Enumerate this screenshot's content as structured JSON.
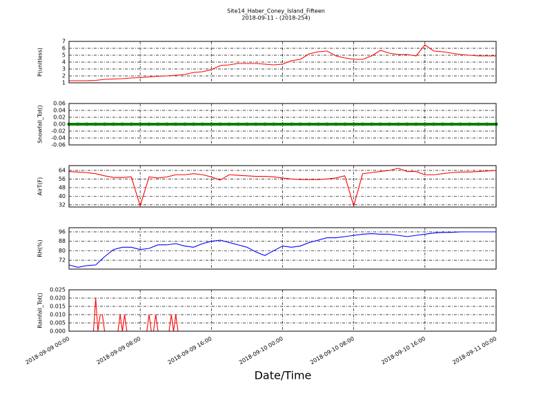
{
  "chart_data": [
    {
      "type": "line",
      "title": "Site14_Haber_Coney_Island_Fifteen",
      "subtitle": "2018-09-11 - (2018-254)",
      "ylabel": "P(unitless)",
      "color": "#ff0000",
      "grid": true,
      "x": [
        "2018-09-09 00:00",
        "2018-09-09 01:00",
        "2018-09-09 02:00",
        "2018-09-09 03:00",
        "2018-09-09 04:00",
        "2018-09-09 05:00",
        "2018-09-09 06:00",
        "2018-09-09 07:00",
        "2018-09-09 08:00",
        "2018-09-09 09:00",
        "2018-09-09 10:00",
        "2018-09-09 11:00",
        "2018-09-09 12:00",
        "2018-09-09 13:00",
        "2018-09-09 14:00",
        "2018-09-09 15:00",
        "2018-09-09 16:00",
        "2018-09-09 17:00",
        "2018-09-09 18:00",
        "2018-09-09 19:00",
        "2018-09-09 20:00",
        "2018-09-09 21:00",
        "2018-09-09 22:00",
        "2018-09-09 23:00",
        "2018-09-10 00:00",
        "2018-09-10 01:00",
        "2018-09-10 02:00",
        "2018-09-10 03:00",
        "2018-09-10 04:00",
        "2018-09-10 05:00",
        "2018-09-10 06:00",
        "2018-09-10 07:00",
        "2018-09-10 08:00",
        "2018-09-10 09:00",
        "2018-09-10 10:00",
        "2018-09-10 11:00",
        "2018-09-10 12:00",
        "2018-09-10 13:00",
        "2018-09-10 14:00",
        "2018-09-10 15:00",
        "2018-09-10 16:00",
        "2018-09-10 17:00",
        "2018-09-10 18:00",
        "2018-09-10 19:00",
        "2018-09-10 20:00",
        "2018-09-10 21:00",
        "2018-09-10 22:00",
        "2018-09-10 23:00",
        "2018-09-11 00:00"
      ],
      "values": [
        1.3,
        1.3,
        1.3,
        1.35,
        1.5,
        1.55,
        1.6,
        1.7,
        1.75,
        1.85,
        1.95,
        2.0,
        2.1,
        2.2,
        2.5,
        2.6,
        2.9,
        3.5,
        3.6,
        3.8,
        3.8,
        3.8,
        3.7,
        3.6,
        3.7,
        4.2,
        4.4,
        5.2,
        5.5,
        5.6,
        4.9,
        4.6,
        4.4,
        4.4,
        4.9,
        5.7,
        5.3,
        5.1,
        5.1,
        4.9,
        6.5,
        5.6,
        5.5,
        5.3,
        5.1,
        5.0,
        4.9,
        4.9,
        4.9
      ],
      "xlim": [
        "2018-09-09 00:00",
        "2018-09-11 00:00"
      ],
      "xticks": [
        "2018-09-09 00:00",
        "2018-09-09 08:00",
        "2018-09-09 16:00",
        "2018-09-10 00:00",
        "2018-09-10 08:00",
        "2018-09-10 16:00",
        "2018-09-11 00:00"
      ],
      "ylim": [
        1,
        7
      ],
      "yticks": [
        1,
        2,
        3,
        4,
        5,
        6,
        7
      ]
    },
    {
      "type": "line",
      "ylabel": "Snowfall_Tot()",
      "color": "#008000",
      "markers": true,
      "grid": true,
      "x": [
        "2018-09-09 00:00",
        "2018-09-09 01:00",
        "2018-09-09 02:00",
        "2018-09-09 03:00",
        "2018-09-09 04:00",
        "2018-09-09 05:00",
        "2018-09-09 06:00",
        "2018-09-09 07:00",
        "2018-09-09 08:00",
        "2018-09-09 09:00",
        "2018-09-09 10:00",
        "2018-09-09 11:00",
        "2018-09-09 12:00",
        "2018-09-09 13:00",
        "2018-09-09 14:00",
        "2018-09-09 15:00",
        "2018-09-09 16:00",
        "2018-09-09 17:00",
        "2018-09-09 18:00",
        "2018-09-09 19:00",
        "2018-09-09 20:00",
        "2018-09-09 21:00",
        "2018-09-09 22:00",
        "2018-09-09 23:00",
        "2018-09-10 00:00",
        "2018-09-10 01:00",
        "2018-09-10 02:00",
        "2018-09-10 03:00",
        "2018-09-10 04:00",
        "2018-09-10 05:00",
        "2018-09-10 06:00",
        "2018-09-10 07:00",
        "2018-09-10 08:00",
        "2018-09-10 09:00",
        "2018-09-10 10:00",
        "2018-09-10 11:00",
        "2018-09-10 12:00",
        "2018-09-10 13:00",
        "2018-09-10 14:00",
        "2018-09-10 15:00",
        "2018-09-10 16:00",
        "2018-09-10 17:00",
        "2018-09-10 18:00",
        "2018-09-10 19:00",
        "2018-09-10 20:00",
        "2018-09-10 21:00",
        "2018-09-10 22:00",
        "2018-09-10 23:00",
        "2018-09-11 00:00"
      ],
      "values": [
        0,
        0,
        0,
        0,
        0,
        0,
        0,
        0,
        0,
        0,
        0,
        0,
        0,
        0,
        0,
        0,
        0,
        0,
        0,
        0,
        0,
        0,
        0,
        0,
        0,
        0,
        0,
        0,
        0,
        0,
        0,
        0,
        0,
        0,
        0,
        0,
        0,
        0,
        0,
        0,
        0,
        0,
        0,
        0,
        0,
        0,
        0,
        0,
        0
      ],
      "xlim": [
        "2018-09-09 00:00",
        "2018-09-11 00:00"
      ],
      "xticks": [
        "2018-09-09 00:00",
        "2018-09-09 08:00",
        "2018-09-09 16:00",
        "2018-09-10 00:00",
        "2018-09-10 08:00",
        "2018-09-10 16:00",
        "2018-09-11 00:00"
      ],
      "ylim": [
        -0.06,
        0.06
      ],
      "yticks": [
        {
          "value": -0.06,
          "label": "-0.06"
        },
        {
          "value": -0.04,
          "label": "-0.04"
        },
        {
          "value": -0.02,
          "label": "-0.02"
        },
        {
          "value": 0,
          "label": "0.00"
        },
        {
          "value": 0.02,
          "label": "0.02"
        },
        {
          "value": 0.04,
          "label": "0.04"
        },
        {
          "value": 0.06,
          "label": "0.06"
        }
      ]
    },
    {
      "type": "line",
      "ylabel": "AirT(F)",
      "color": "#ff0000",
      "grid": true,
      "x": [
        "2018-09-09 00:00",
        "2018-09-09 01:00",
        "2018-09-09 02:00",
        "2018-09-09 03:00",
        "2018-09-09 04:00",
        "2018-09-09 05:00",
        "2018-09-09 06:00",
        "2018-09-09 07:00",
        "2018-09-09 08:00",
        "2018-09-09 09:00",
        "2018-09-09 10:00",
        "2018-09-09 11:00",
        "2018-09-09 12:00",
        "2018-09-09 13:00",
        "2018-09-09 14:00",
        "2018-09-09 15:00",
        "2018-09-09 16:00",
        "2018-09-09 17:00",
        "2018-09-09 18:00",
        "2018-09-09 19:00",
        "2018-09-09 20:00",
        "2018-09-09 21:00",
        "2018-09-09 22:00",
        "2018-09-09 23:00",
        "2018-09-10 00:00",
        "2018-09-10 01:00",
        "2018-09-10 02:00",
        "2018-09-10 03:00",
        "2018-09-10 04:00",
        "2018-09-10 05:00",
        "2018-09-10 06:00",
        "2018-09-10 07:00",
        "2018-09-10 08:00",
        "2018-09-10 09:00",
        "2018-09-10 10:00",
        "2018-09-10 11:00",
        "2018-09-10 12:00",
        "2018-09-10 13:00",
        "2018-09-10 14:00",
        "2018-09-10 15:00",
        "2018-09-10 16:00",
        "2018-09-10 17:00",
        "2018-09-10 18:00",
        "2018-09-10 19:00",
        "2018-09-10 20:00",
        "2018-09-10 21:00",
        "2018-09-10 22:00",
        "2018-09-10 23:00",
        "2018-09-11 00:00"
      ],
      "values": [
        63,
        62.5,
        62,
        61,
        59,
        57.5,
        57.5,
        58,
        31,
        58,
        57,
        58,
        60,
        60,
        61,
        60,
        58,
        55,
        60,
        59.5,
        59,
        58.5,
        58.5,
        58,
        57,
        56,
        55.5,
        55.5,
        55.5,
        56,
        57,
        59,
        31,
        61,
        62,
        63,
        64,
        66,
        63,
        63,
        60,
        60,
        61,
        62,
        62.5,
        62.5,
        63,
        63.5,
        64
      ],
      "xlim": [
        "2018-09-09 00:00",
        "2018-09-11 00:00"
      ],
      "xticks": [
        "2018-09-09 00:00",
        "2018-09-09 08:00",
        "2018-09-09 16:00",
        "2018-09-10 00:00",
        "2018-09-10 08:00",
        "2018-09-10 16:00",
        "2018-09-11 00:00"
      ],
      "ylim": [
        30,
        68.5
      ],
      "yticks": [
        32,
        40,
        48,
        56,
        64
      ]
    },
    {
      "type": "line",
      "ylabel": "RH(%)",
      "color": "#0000ff",
      "grid": true,
      "x": [
        "2018-09-09 00:00",
        "2018-09-09 01:00",
        "2018-09-09 02:00",
        "2018-09-09 03:00",
        "2018-09-09 04:00",
        "2018-09-09 05:00",
        "2018-09-09 06:00",
        "2018-09-09 07:00",
        "2018-09-09 08:00",
        "2018-09-09 09:00",
        "2018-09-09 10:00",
        "2018-09-09 11:00",
        "2018-09-09 12:00",
        "2018-09-09 13:00",
        "2018-09-09 14:00",
        "2018-09-09 15:00",
        "2018-09-09 16:00",
        "2018-09-09 17:00",
        "2018-09-09 18:00",
        "2018-09-09 19:00",
        "2018-09-09 20:00",
        "2018-09-09 21:00",
        "2018-09-09 22:00",
        "2018-09-09 23:00",
        "2018-09-10 00:00",
        "2018-09-10 01:00",
        "2018-09-10 02:00",
        "2018-09-10 03:00",
        "2018-09-10 04:00",
        "2018-09-10 05:00",
        "2018-09-10 06:00",
        "2018-09-10 07:00",
        "2018-09-10 08:00",
        "2018-09-10 09:00",
        "2018-09-10 10:00",
        "2018-09-10 11:00",
        "2018-09-10 12:00",
        "2018-09-10 13:00",
        "2018-09-10 14:00",
        "2018-09-10 15:00",
        "2018-09-10 16:00",
        "2018-09-10 17:00",
        "2018-09-10 18:00",
        "2018-09-10 19:00",
        "2018-09-10 20:00",
        "2018-09-10 21:00",
        "2018-09-10 22:00",
        "2018-09-10 23:00",
        "2018-09-11 00:00"
      ],
      "values": [
        68,
        66,
        67.5,
        68,
        75,
        81,
        83,
        83,
        81,
        82,
        85,
        85,
        86,
        84,
        83,
        86,
        88,
        89,
        87,
        85,
        83,
        79,
        76,
        80,
        84,
        83,
        84,
        87,
        89,
        91,
        91,
        92,
        93,
        94,
        94.5,
        94,
        94,
        93,
        92,
        93,
        94,
        95,
        95.5,
        95.5,
        96,
        96,
        96,
        96,
        96
      ],
      "xlim": [
        "2018-09-09 00:00",
        "2018-09-11 00:00"
      ],
      "xticks": [
        "2018-09-09 00:00",
        "2018-09-09 08:00",
        "2018-09-09 16:00",
        "2018-09-10 00:00",
        "2018-09-10 08:00",
        "2018-09-10 16:00",
        "2018-09-11 00:00"
      ],
      "ylim": [
        64.5,
        99.5
      ],
      "yticks": [
        72,
        80,
        88,
        96
      ]
    },
    {
      "type": "line",
      "ylabel": "Rainfall_Tot()",
      "xlabel": "Date/Time",
      "color": "#ff0000",
      "grid": true,
      "x": [
        "2018-09-09 00:00",
        "2018-09-09 02:45",
        "2018-09-09 03:00",
        "2018-09-09 03:15",
        "2018-09-09 03:30",
        "2018-09-09 03:45",
        "2018-09-09 04:00",
        "2018-09-09 05:30",
        "2018-09-09 05:45",
        "2018-09-09 06:00",
        "2018-09-09 06:15",
        "2018-09-09 06:30",
        "2018-09-09 08:45",
        "2018-09-09 09:00",
        "2018-09-09 09:15",
        "2018-09-09 09:30",
        "2018-09-09 09:45",
        "2018-09-09 10:00",
        "2018-09-09 11:15",
        "2018-09-09 11:30",
        "2018-09-09 11:45",
        "2018-09-09 12:00",
        "2018-09-09 12:15",
        "2018-09-11 00:00"
      ],
      "values": [
        0,
        0,
        0.02,
        0,
        0.01,
        0.01,
        0,
        0,
        0.01,
        0,
        0.01,
        0,
        0,
        0.01,
        0,
        0,
        0.01,
        0,
        0,
        0.01,
        0,
        0.01,
        0,
        0
      ],
      "xlim": [
        "2018-09-09 00:00",
        "2018-09-11 00:00"
      ],
      "xticks": [
        "2018-09-09 00:00",
        "2018-09-09 08:00",
        "2018-09-09 16:00",
        "2018-09-10 00:00",
        "2018-09-10 08:00",
        "2018-09-10 16:00",
        "2018-09-11 00:00"
      ],
      "ylim": [
        0,
        0.025
      ],
      "yticks": [
        {
          "value": 0,
          "label": "0.000"
        },
        {
          "value": 0.005,
          "label": "0.005"
        },
        {
          "value": 0.01,
          "label": "0.010"
        },
        {
          "value": 0.015,
          "label": "0.015"
        },
        {
          "value": 0.02,
          "label": "0.020"
        },
        {
          "value": 0.025,
          "label": "0.025"
        }
      ]
    }
  ]
}
